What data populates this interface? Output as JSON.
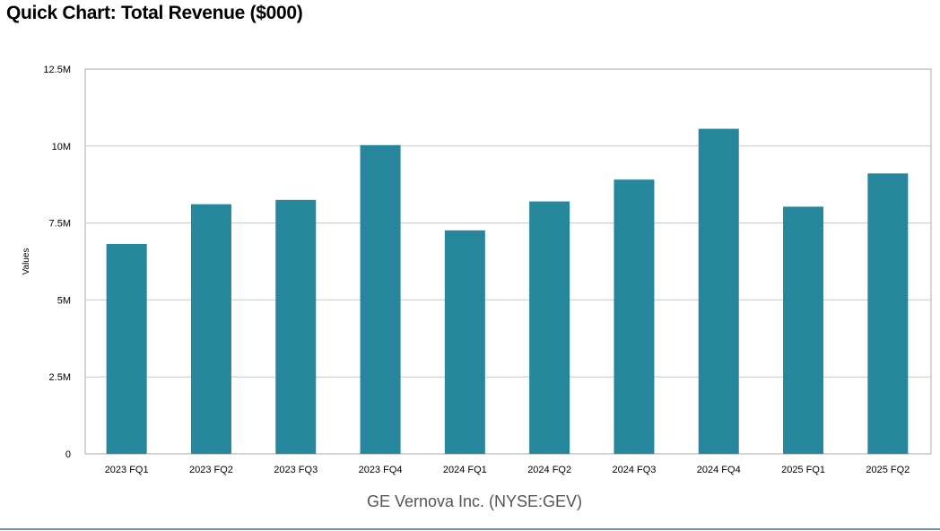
{
  "page": {
    "title": "Quick Chart: Total Revenue ($000)"
  },
  "chart_data": {
    "type": "bar",
    "title": "Quick Chart: Total Revenue ($000)",
    "subtitle": "GE Vernova Inc. (NYSE:GEV)",
    "xlabel": "GE Vernova Inc. (NYSE:GEV)",
    "ylabel": "Values",
    "categories": [
      "2023 FQ1",
      "2023 FQ2",
      "2023 FQ3",
      "2023 FQ4",
      "2024 FQ1",
      "2024 FQ2",
      "2024 FQ3",
      "2024 FQ4",
      "2025 FQ1",
      "2025 FQ2"
    ],
    "values": [
      6820000,
      8110000,
      8250000,
      10030000,
      7260000,
      8200000,
      8910000,
      10560000,
      8030000,
      9110000
    ],
    "ylim": [
      0,
      12500000
    ],
    "yticks": [
      0,
      2500000,
      5000000,
      7500000,
      10000000,
      12500000
    ],
    "ytick_labels": [
      "0",
      "2.5M",
      "5M",
      "7.5M",
      "10M",
      "12.5M"
    ],
    "grid": true,
    "bar_color": "#26869b",
    "grid_color": "#c8c8c8",
    "axis_color": "#aaaaaa"
  }
}
